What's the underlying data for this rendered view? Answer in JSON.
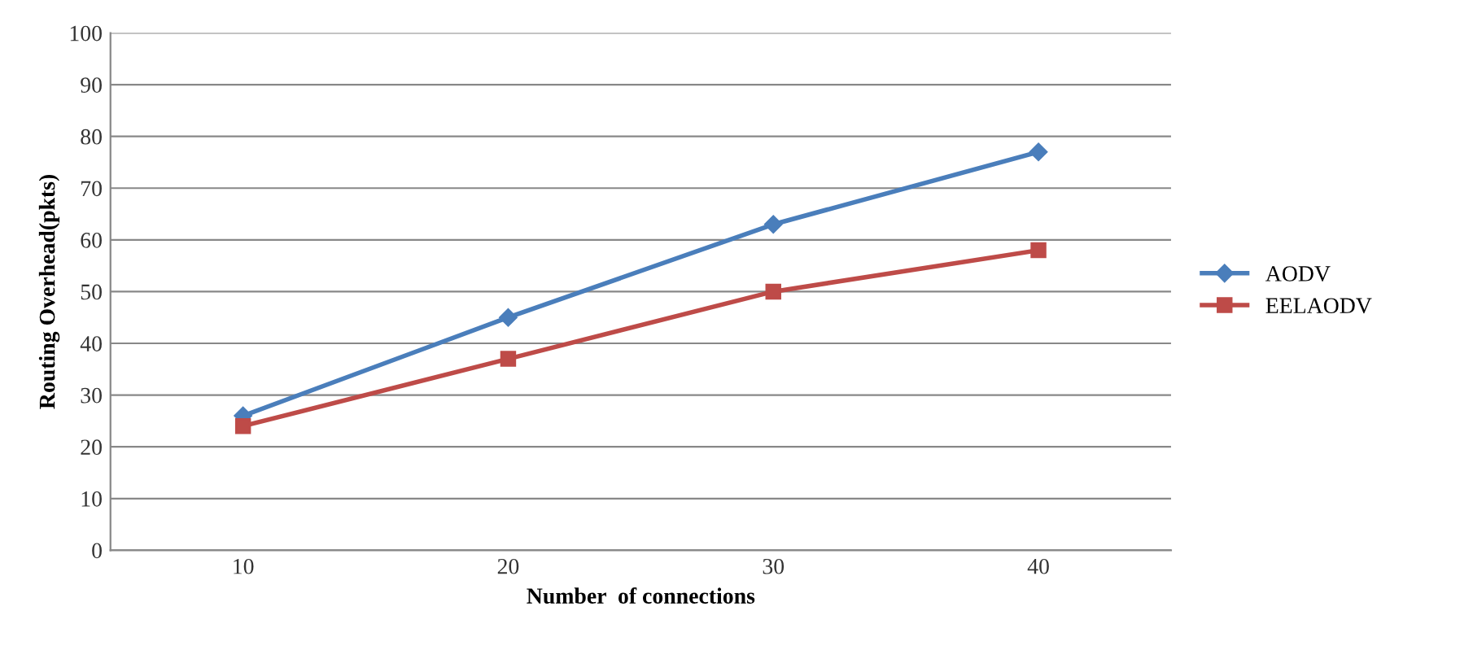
{
  "chart_data": {
    "type": "line",
    "xlabel": "Number  of connections",
    "ylabel": "Routing Overhead(pkts)",
    "categories": [
      "10",
      "20",
      "30",
      "40"
    ],
    "series": [
      {
        "name": "AODV",
        "color": "#4a7ebb",
        "values": [
          26,
          45,
          63,
          77
        ],
        "marker": "diamond"
      },
      {
        "name": "EELAODV",
        "color": "#be4b48",
        "values": [
          24,
          37,
          50,
          58
        ],
        "marker": "square"
      }
    ],
    "ylim": [
      0,
      100
    ],
    "yticks": [
      0,
      10,
      20,
      30,
      40,
      50,
      60,
      70,
      80,
      90,
      100
    ],
    "grid": "y",
    "legend": "right",
    "line_style": "solid"
  }
}
